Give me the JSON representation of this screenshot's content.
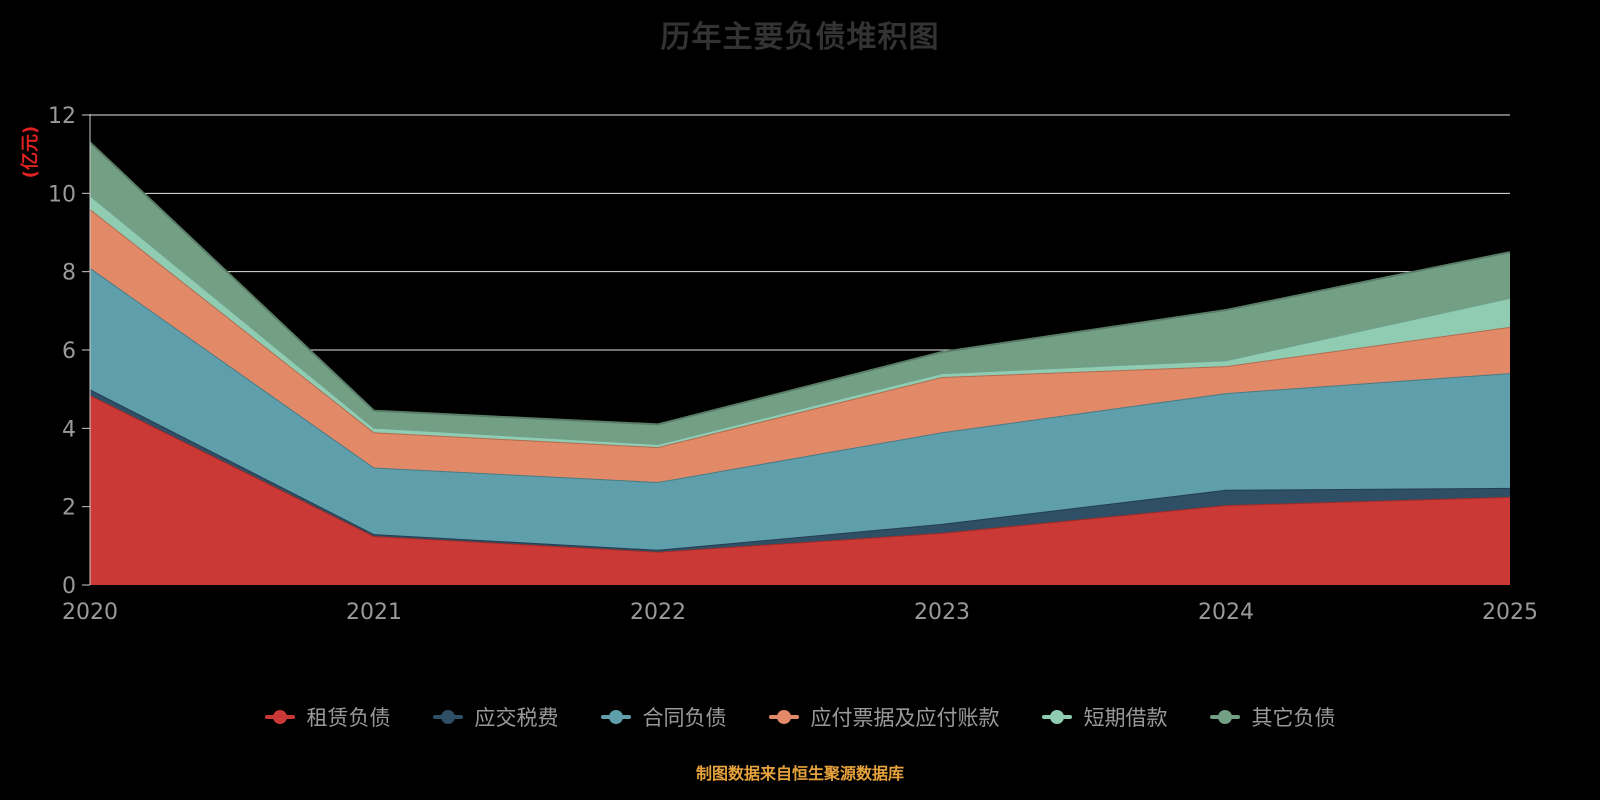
{
  "page": {
    "background": "#000000"
  },
  "footer": {
    "text": "制图数据来自恒生聚源数据库",
    "color": "#e6a23c"
  },
  "chart_data": {
    "type": "area",
    "stacked": true,
    "title": "历年主要负债堆积图",
    "ylabel": "(亿元)",
    "xlabel": "",
    "x": [
      "2020",
      "2021",
      "2022",
      "2023",
      "2024",
      "2025"
    ],
    "ylim": [
      0,
      12
    ],
    "yticks": [
      0,
      2,
      4,
      6,
      8,
      10,
      12
    ],
    "grid": true,
    "legend_position": "bottom",
    "series": [
      {
        "name": "租赁负债",
        "color": "#ca3935",
        "values": [
          4.85,
          1.25,
          0.85,
          1.33,
          2.04,
          2.25
        ]
      },
      {
        "name": "应交税费",
        "color": "#2e4f66",
        "values": [
          0.15,
          0.05,
          0.05,
          0.23,
          0.39,
          0.23
        ]
      },
      {
        "name": "合同负债",
        "color": "#5f9eab",
        "values": [
          3.1,
          1.7,
          1.73,
          2.34,
          2.47,
          2.93
        ]
      },
      {
        "name": "应付票据及应付账款",
        "color": "#e28a68",
        "values": [
          1.5,
          0.9,
          0.89,
          1.41,
          0.69,
          1.18
        ]
      },
      {
        "name": "短期借款",
        "color": "#8fccb2",
        "values": [
          0.35,
          0.12,
          0.08,
          0.1,
          0.15,
          0.74
        ]
      },
      {
        "name": "其它负债",
        "color": "#73a084",
        "values": [
          1.35,
          0.43,
          0.5,
          0.54,
          1.28,
          1.17
        ]
      }
    ],
    "totals_by_year": [
      11.3,
      4.45,
      4.1,
      5.95,
      7.02,
      8.5
    ]
  }
}
